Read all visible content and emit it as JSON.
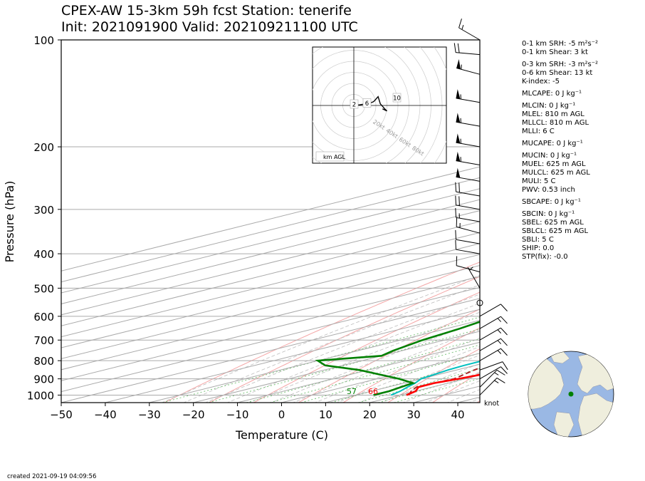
{
  "header": {
    "line1": "CPEX-AW 15-3km  59h fcst  Station: tenerife",
    "line2": "Init: 2021091900  Valid: 202109211100 UTC"
  },
  "footer": {
    "created": "created 2021-09-19 04:09:56"
  },
  "stats": [
    "0-1 km SRH: -5 m²s⁻²",
    "0-1 km Shear: 3 kt",
    "0-3 km SRH: -3 m²s⁻²",
    "0-6 km Shear: 13 kt",
    "K-index: -5",
    "MLCAPE: 0 J kg⁻¹",
    "MLCIN: 0 J kg⁻¹",
    "MLEL: 810 m AGL",
    "MLLCL: 810 m AGL",
    "MLLI: 6 C",
    "MUCAPE: 0 J kg⁻¹",
    "MUCIN: 0 J kg⁻¹",
    "MUEL: 625 m AGL",
    "MULCL: 625 m AGL",
    "MULI: 5 C",
    "PWV: 0.53 inch",
    "SBCAPE: 0 J kg⁻¹",
    "SBCIN: 0 J kg⁻¹",
    "SBEL: 625 m AGL",
    "SBLCL: 625 m AGL",
    "SBLI: 5 C",
    "SHIP: 0.0",
    "STP(fix): -0.0"
  ],
  "colors": {
    "temperature": "#ff0000",
    "dewpoint": "#008000",
    "wetbulb": "#00bfbf",
    "parcel": "#a52a2a",
    "isobar": "#aaaaaa",
    "isotherm": "#aaaaaa",
    "dry_adiabat": "#f4a6a6",
    "moist_adiabat": "#bdbdbd",
    "mixing_ratio": "#7cc47c",
    "ocean": "#9ab8e4",
    "land": "#efeedd",
    "station": "#008000"
  },
  "chart_data": {
    "type": "skew-t",
    "xlabel": "Temperature (C)",
    "ylabel": "Pressure (hPa)",
    "xlim": [
      -50,
      45
    ],
    "ylim": [
      1050,
      100
    ],
    "x_ticks": [
      -50,
      -40,
      -30,
      -20,
      -10,
      0,
      10,
      20,
      30,
      40
    ],
    "y_ticks": [
      100,
      200,
      300,
      400,
      500,
      600,
      700,
      800,
      900,
      1000
    ],
    "surface_labels": {
      "dewpoint_f": "57",
      "temperature_f": "66"
    },
    "wind_unit_label": "knot",
    "temperature": [
      [
        1000,
        21.5
      ],
      [
        975,
        20
      ],
      [
        950,
        17
      ],
      [
        925,
        16.8
      ],
      [
        900,
        18.5
      ],
      [
        850,
        21
      ],
      [
        825,
        21.5
      ],
      [
        800,
        20
      ],
      [
        750,
        17
      ],
      [
        700,
        15.5
      ],
      [
        650,
        14
      ],
      [
        600,
        12.5
      ],
      [
        550,
        10
      ],
      [
        500,
        6.5
      ],
      [
        450,
        2.5
      ],
      [
        400,
        -3
      ],
      [
        350,
        -8
      ],
      [
        300,
        -12.5
      ],
      [
        250,
        -19
      ],
      [
        200,
        -27
      ],
      [
        175,
        -31.5
      ],
      [
        150,
        -35.5
      ],
      [
        125,
        -40
      ],
      [
        100,
        -42
      ]
    ],
    "wetbulb": [
      [
        1000,
        18
      ],
      [
        975,
        16.5
      ],
      [
        950,
        14.5
      ],
      [
        925,
        12.5
      ],
      [
        900,
        10
      ],
      [
        850,
        8
      ],
      [
        825,
        7.5
      ],
      [
        800,
        7.5
      ],
      [
        750,
        6.5
      ],
      [
        700,
        5.5
      ],
      [
        650,
        4.5
      ],
      [
        600,
        3.5
      ],
      [
        550,
        1.5
      ],
      [
        500,
        -1.5
      ],
      [
        450,
        -5.5
      ],
      [
        400,
        -10
      ],
      [
        350,
        -15
      ],
      [
        300,
        -19
      ],
      [
        250,
        -24.5
      ],
      [
        200,
        -30.5
      ],
      [
        175,
        -34
      ],
      [
        150,
        -37.5
      ],
      [
        125,
        -41.5
      ],
      [
        100,
        -43.5
      ]
    ],
    "dewpoint": [
      [
        1000,
        14
      ],
      [
        975,
        14
      ],
      [
        950,
        13
      ],
      [
        925,
        12
      ],
      [
        900,
        5
      ],
      [
        850,
        -12
      ],
      [
        825,
        -24
      ],
      [
        800,
        -30
      ],
      [
        775,
        -20
      ],
      [
        750,
        -22
      ],
      [
        700,
        -25
      ],
      [
        650,
        -27
      ],
      [
        600,
        -30
      ],
      [
        550,
        -32
      ],
      [
        500,
        -33
      ],
      [
        450,
        -32
      ],
      [
        400,
        -33
      ],
      [
        350,
        -33
      ],
      [
        300,
        -38
      ],
      [
        250,
        -43
      ],
      [
        200,
        -43
      ],
      [
        175,
        -46
      ],
      [
        150,
        -48
      ],
      [
        125,
        -51
      ],
      [
        100,
        -51
      ]
    ],
    "parcel": [
      [
        1000,
        22
      ],
      [
        975,
        19
      ],
      [
        950,
        16.5
      ],
      [
        925,
        16.8
      ],
      [
        900,
        17.5
      ],
      [
        850,
        14
      ],
      [
        800,
        11
      ],
      [
        750,
        8
      ],
      [
        700,
        5
      ],
      [
        600,
        -2
      ],
      [
        500,
        -10
      ],
      [
        400,
        -20
      ],
      [
        300,
        -33
      ],
      [
        250,
        -42
      ],
      [
        200,
        -52
      ],
      [
        150,
        -67
      ],
      [
        125,
        -76
      ],
      [
        100,
        -90
      ]
    ],
    "wind_barbs": [
      {
        "p": 1000,
        "dir": 45,
        "kt": 15
      },
      {
        "p": 950,
        "dir": 45,
        "kt": 15
      },
      {
        "p": 900,
        "dir": 60,
        "kt": 10
      },
      {
        "p": 850,
        "dir": 70,
        "kt": 10
      },
      {
        "p": 800,
        "dir": 60,
        "kt": 15
      },
      {
        "p": 750,
        "dir": 60,
        "kt": 15
      },
      {
        "p": 700,
        "dir": 60,
        "kt": 15
      },
      {
        "p": 650,
        "dir": 60,
        "kt": 15
      },
      {
        "p": 600,
        "dir": 60,
        "kt": 10
      },
      {
        "p": 550,
        "dir": 0,
        "kt": 0
      },
      {
        "p": 500,
        "dir": 330,
        "kt": 5
      },
      {
        "p": 450,
        "dir": 285,
        "kt": 10
      },
      {
        "p": 400,
        "dir": 280,
        "kt": 10
      },
      {
        "p": 375,
        "dir": 280,
        "kt": 10
      },
      {
        "p": 350,
        "dir": 285,
        "kt": 15
      },
      {
        "p": 325,
        "dir": 280,
        "kt": 15
      },
      {
        "p": 300,
        "dir": 280,
        "kt": 20
      },
      {
        "p": 275,
        "dir": 280,
        "kt": 20
      },
      {
        "p": 250,
        "dir": 280,
        "kt": 50
      },
      {
        "p": 225,
        "dir": 280,
        "kt": 55
      },
      {
        "p": 200,
        "dir": 280,
        "kt": 55
      },
      {
        "p": 175,
        "dir": 280,
        "kt": 55
      },
      {
        "p": 150,
        "dir": 280,
        "kt": 55
      },
      {
        "p": 125,
        "dir": 285,
        "kt": 55
      },
      {
        "p": 110,
        "dir": 275,
        "kt": 20
      },
      {
        "p": 100,
        "dir": 300,
        "kt": 15
      }
    ],
    "hodograph": {
      "range_labels": [
        "20kt",
        "40kt",
        "60kt",
        "80kt"
      ],
      "height_labels": [
        "2",
        "6",
        "10"
      ],
      "unit_label": "km AGL",
      "points": [
        [
          -1,
          0
        ],
        [
          3,
          0.5
        ],
        [
          5,
          0.5
        ],
        [
          8,
          1
        ],
        [
          12,
          1
        ],
        [
          18,
          3.5
        ],
        [
          22,
          8
        ],
        [
          24,
          1.5
        ],
        [
          28,
          -3
        ],
        [
          30,
          -5
        ],
        [
          26,
          -3
        ]
      ]
    }
  }
}
